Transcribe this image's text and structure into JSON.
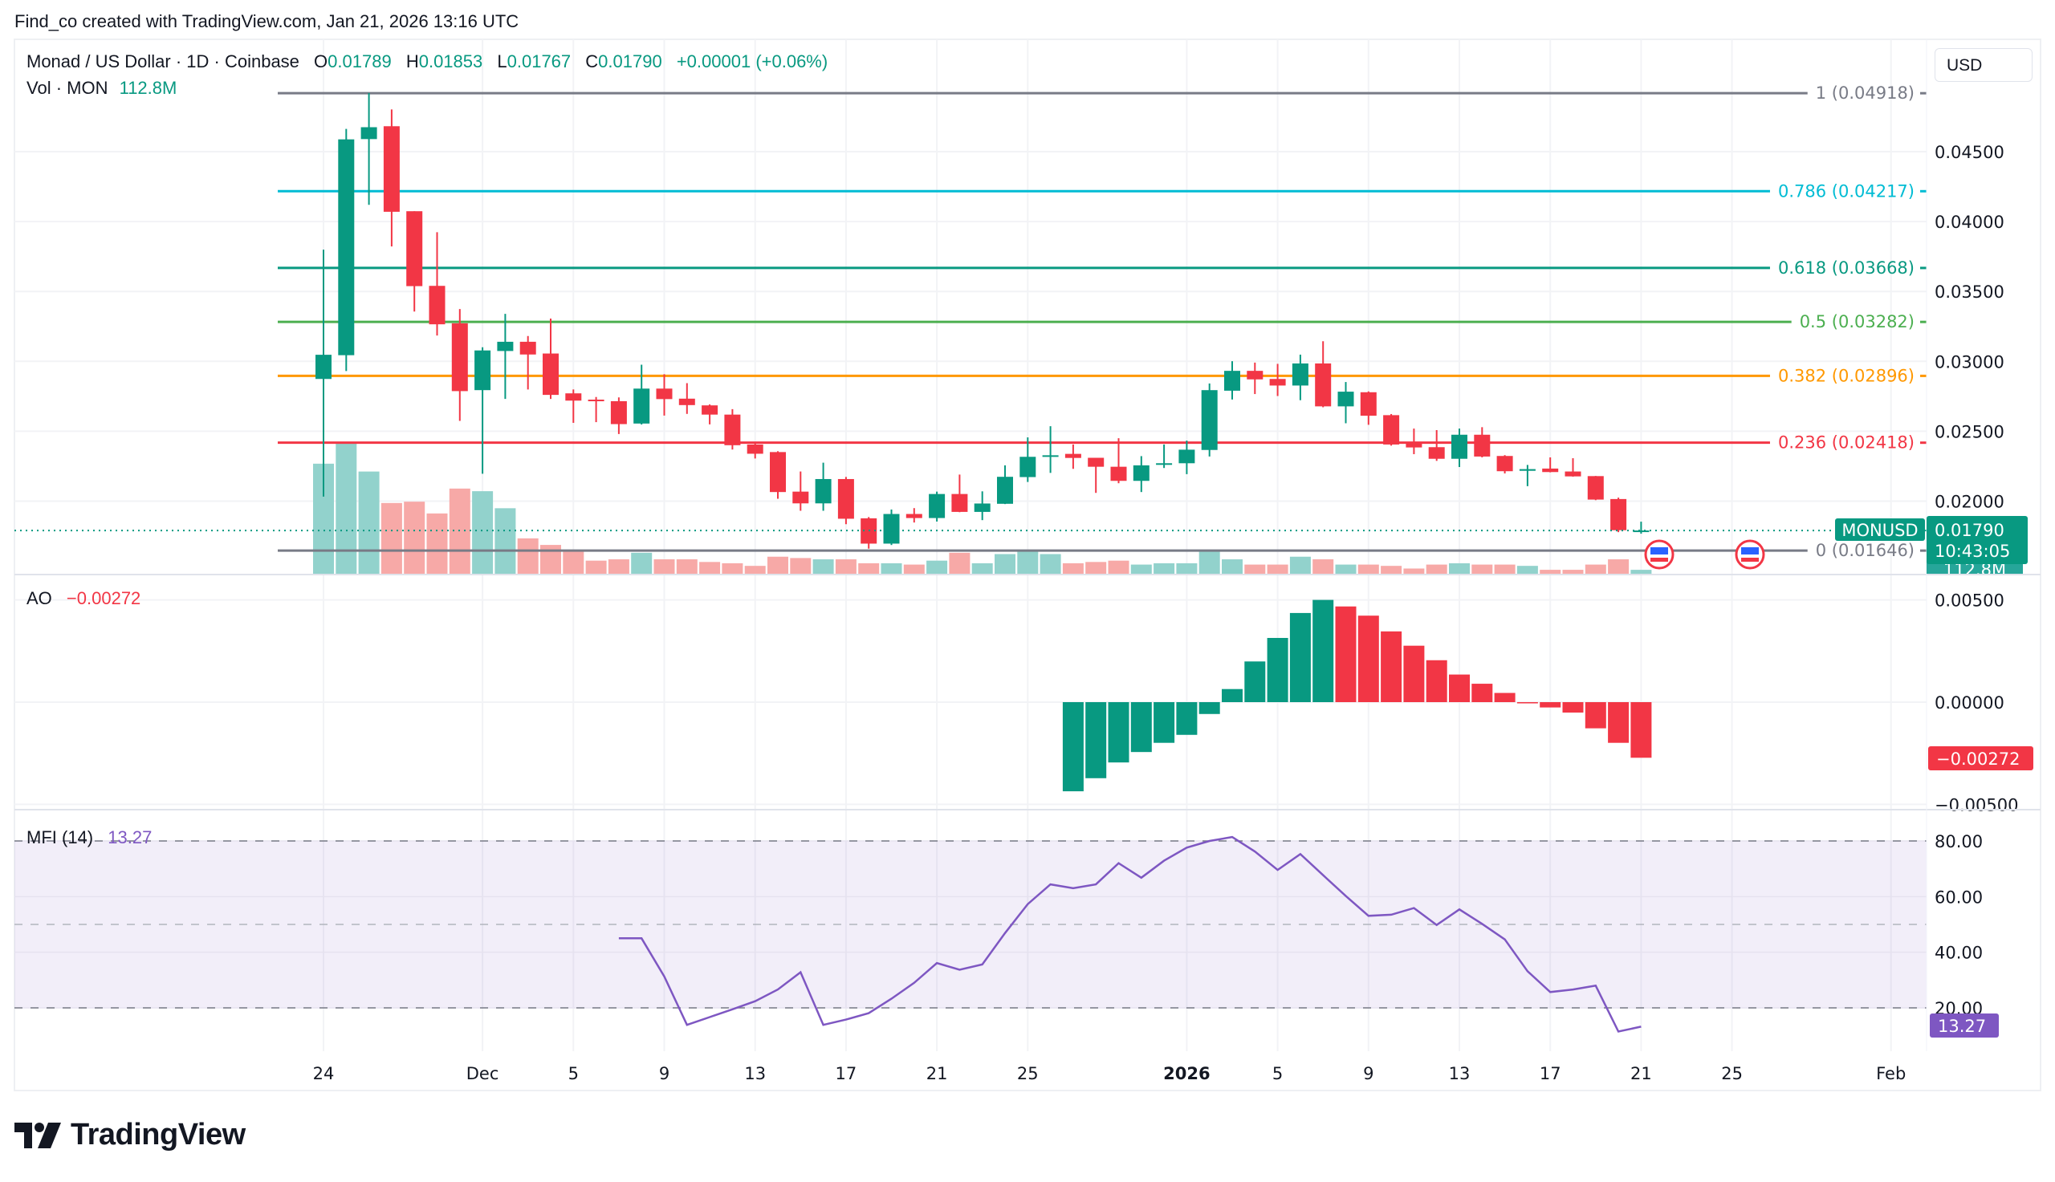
{
  "header": {
    "attribution": "Find_co created with TradingView.com, Jan 21, 2026 13:16 UTC"
  },
  "legend": {
    "symbol": "Monad / US Dollar · 1D · Coinbase",
    "o_label": "O",
    "o": "0.01789",
    "h_label": "H",
    "h": "0.01853",
    "l_label": "L",
    "l": "0.01767",
    "c_label": "C",
    "c": "0.01790",
    "change": "+0.00001 (+0.06%)",
    "vol_label": "Vol · MON",
    "vol": "112.8M"
  },
  "currency_button": "USD",
  "logo": "TradingView",
  "colors": {
    "up": "#089981",
    "down": "#f23645",
    "vol_up": "#92d2cc",
    "vol_down": "#f7a9a7",
    "mfi": "#7e57c2",
    "ao_up": "#089981",
    "ao_down": "#f23645"
  },
  "price_tag": {
    "symbol": "MONUSD",
    "price": "0.01790",
    "countdown": "10:43:05",
    "volume": "112.8M"
  },
  "event_icons": [
    "us-flag-icon",
    "us-flag-icon"
  ],
  "chart_data": [
    {
      "type": "candlestick",
      "title": "Monad / US Dollar · 1D · Coinbase",
      "ylim": [
        0.0155,
        0.0505
      ],
      "yticks": [
        "0.04500",
        "0.04000",
        "0.03500",
        "0.03000",
        "0.02500",
        "0.02000"
      ],
      "xticks": [
        {
          "label": "24",
          "date": "2025-11-24"
        },
        {
          "label": "Dec",
          "date": "2025-12-01"
        },
        {
          "label": "5",
          "date": "2025-12-05"
        },
        {
          "label": "9",
          "date": "2025-12-09"
        },
        {
          "label": "13",
          "date": "2025-12-13"
        },
        {
          "label": "17",
          "date": "2025-12-17"
        },
        {
          "label": "21",
          "date": "2025-12-21"
        },
        {
          "label": "25",
          "date": "2025-12-25"
        },
        {
          "label": "2026",
          "date": "2026-01-01",
          "bold": true
        },
        {
          "label": "5",
          "date": "2026-01-05"
        },
        {
          "label": "9",
          "date": "2026-01-09"
        },
        {
          "label": "13",
          "date": "2026-01-13"
        },
        {
          "label": "17",
          "date": "2026-01-17"
        },
        {
          "label": "21",
          "date": "2026-01-21"
        },
        {
          "label": "25",
          "date": "2026-01-25"
        },
        {
          "label": "Feb",
          "date": "2026-02-01"
        }
      ],
      "columns": [
        "date",
        "open",
        "high",
        "low",
        "close",
        "volume_m"
      ],
      "candles": [
        [
          "2025-11-24",
          0.02874,
          0.03799,
          0.02032,
          0.03047,
          3158
        ],
        [
          "2025-11-25",
          0.03044,
          0.04663,
          0.02931,
          0.04588,
          3760
        ],
        [
          "2025-11-26",
          0.0459,
          0.0492,
          0.0412,
          0.04675,
          2933
        ],
        [
          "2025-11-27",
          0.04682,
          0.04802,
          0.03822,
          0.0407,
          2030
        ],
        [
          "2025-11-28",
          0.04074,
          0.04074,
          0.03356,
          0.03538,
          2068
        ],
        [
          "2025-11-29",
          0.0354,
          0.03924,
          0.03185,
          0.03265,
          1730
        ],
        [
          "2025-11-30",
          0.03272,
          0.03374,
          0.02574,
          0.02787,
          2444
        ],
        [
          "2025-12-01",
          0.02794,
          0.03101,
          0.02196,
          0.03078,
          2369
        ],
        [
          "2025-12-02",
          0.03074,
          0.0334,
          0.02731,
          0.0314,
          1880
        ],
        [
          "2025-12-03",
          0.0314,
          0.03181,
          0.02799,
          0.03049,
          1015
        ],
        [
          "2025-12-04",
          0.03056,
          0.03306,
          0.02731,
          0.0276,
          827
        ],
        [
          "2025-12-05",
          0.02771,
          0.02799,
          0.0256,
          0.02719,
          639
        ],
        [
          "2025-12-06",
          0.02726,
          0.02745,
          0.02565,
          0.02718,
          376
        ],
        [
          "2025-12-07",
          0.02715,
          0.02742,
          0.0248,
          0.02551,
          414
        ],
        [
          "2025-12-08",
          0.02555,
          0.02976,
          0.02548,
          0.02805,
          602
        ],
        [
          "2025-12-09",
          0.02805,
          0.02908,
          0.02612,
          0.0273,
          414
        ],
        [
          "2025-12-10",
          0.02733,
          0.02844,
          0.02624,
          0.02687,
          414
        ],
        [
          "2025-12-11",
          0.02685,
          0.02692,
          0.02549,
          0.02619,
          338
        ],
        [
          "2025-12-12",
          0.02619,
          0.02658,
          0.02369,
          0.024,
          301
        ],
        [
          "2025-12-13",
          0.02405,
          0.02412,
          0.02305,
          0.02339,
          226
        ],
        [
          "2025-12-14",
          0.02351,
          0.02357,
          0.02017,
          0.02065,
          489
        ],
        [
          "2025-12-15",
          0.02068,
          0.02212,
          0.01931,
          0.01984,
          451
        ],
        [
          "2025-12-16",
          0.01984,
          0.02275,
          0.01931,
          0.02158,
          414
        ],
        [
          "2025-12-17",
          0.02158,
          0.02173,
          0.01835,
          0.01874,
          414
        ],
        [
          "2025-12-18",
          0.01877,
          0.01886,
          0.0166,
          0.01696,
          301
        ],
        [
          "2025-12-19",
          0.01696,
          0.0194,
          0.01686,
          0.01908,
          301
        ],
        [
          "2025-12-20",
          0.01908,
          0.0195,
          0.01847,
          0.01879,
          263
        ],
        [
          "2025-12-21",
          0.01879,
          0.02068,
          0.01854,
          0.02051,
          376
        ],
        [
          "2025-12-22",
          0.02051,
          0.0219,
          0.01921,
          0.01923,
          602
        ],
        [
          "2025-12-23",
          0.01923,
          0.0207,
          0.01864,
          0.01983,
          301
        ],
        [
          "2025-12-24",
          0.01981,
          0.02256,
          0.01979,
          0.02174,
          564
        ],
        [
          "2025-12-25",
          0.02172,
          0.02456,
          0.02137,
          0.02317,
          639
        ],
        [
          "2025-12-26",
          0.02317,
          0.02536,
          0.02202,
          0.02328,
          564
        ],
        [
          "2025-12-27",
          0.02338,
          0.02405,
          0.02231,
          0.02309,
          301
        ],
        [
          "2025-12-28",
          0.0231,
          0.0231,
          0.02059,
          0.02246,
          338
        ],
        [
          "2025-12-29",
          0.02246,
          0.0245,
          0.02128,
          0.02145,
          376
        ],
        [
          "2025-12-30",
          0.02145,
          0.02322,
          0.02065,
          0.02256,
          263
        ],
        [
          "2025-12-31",
          0.0226,
          0.02405,
          0.02237,
          0.02271,
          301
        ],
        [
          "2026-01-01",
          0.02271,
          0.02433,
          0.02193,
          0.02368,
          301
        ],
        [
          "2026-01-02",
          0.02366,
          0.02842,
          0.02319,
          0.02794,
          677
        ],
        [
          "2026-01-03",
          0.0279,
          0.03001,
          0.02727,
          0.02932,
          414
        ],
        [
          "2026-01-04",
          0.02932,
          0.02991,
          0.02766,
          0.02871,
          263
        ],
        [
          "2026-01-05",
          0.02874,
          0.02982,
          0.02752,
          0.02827,
          263
        ],
        [
          "2026-01-06",
          0.02827,
          0.03048,
          0.02722,
          0.02985,
          489
        ],
        [
          "2026-01-07",
          0.02985,
          0.03144,
          0.02672,
          0.02678,
          414
        ],
        [
          "2026-01-08",
          0.02678,
          0.02852,
          0.02557,
          0.02783,
          263
        ],
        [
          "2026-01-09",
          0.02779,
          0.02785,
          0.02546,
          0.02611,
          263
        ],
        [
          "2026-01-10",
          0.02615,
          0.02623,
          0.02397,
          0.02405,
          226
        ],
        [
          "2026-01-11",
          0.02424,
          0.02519,
          0.02336,
          0.02384,
          150
        ],
        [
          "2026-01-12",
          0.02386,
          0.02508,
          0.02288,
          0.02303,
          263
        ],
        [
          "2026-01-13",
          0.02303,
          0.02519,
          0.02244,
          0.02475,
          301
        ],
        [
          "2026-01-14",
          0.02475,
          0.02529,
          0.02313,
          0.02319,
          263
        ],
        [
          "2026-01-15",
          0.02323,
          0.02329,
          0.02198,
          0.02214,
          263
        ],
        [
          "2026-01-16",
          0.02217,
          0.02259,
          0.02107,
          0.02229,
          226
        ],
        [
          "2026-01-17",
          0.02233,
          0.02313,
          0.02206,
          0.02208,
          113
        ],
        [
          "2026-01-18",
          0.02212,
          0.02307,
          0.02175,
          0.02177,
          113
        ],
        [
          "2026-01-19",
          0.02179,
          0.0218,
          0.02007,
          0.02011,
          263
        ],
        [
          "2026-01-20",
          0.02015,
          0.02025,
          0.01778,
          0.01792,
          414
        ],
        [
          "2026-01-21",
          0.01789,
          0.01853,
          0.01767,
          0.0179,
          112.8
        ]
      ],
      "fib_levels": [
        {
          "label": "1 (0.04918)",
          "price": 0.04918,
          "color": "#787b86"
        },
        {
          "label": "0.786 (0.04217)",
          "price": 0.04217,
          "color": "#00bcd4"
        },
        {
          "label": "0.618 (0.03668)",
          "price": 0.03668,
          "color": "#089981"
        },
        {
          "label": "0.5 (0.03282)",
          "price": 0.03282,
          "color": "#4caf50"
        },
        {
          "label": "0.382 (0.02896)",
          "price": 0.02896,
          "color": "#ff9800"
        },
        {
          "label": "0.236 (0.02418)",
          "price": 0.02418,
          "color": "#f23645"
        },
        {
          "label": "0 (0.01646)",
          "price": 0.01646,
          "color": "#787b86"
        }
      ]
    },
    {
      "type": "bar",
      "title": "AO",
      "value_label": "−0.00272",
      "ylim": [
        -0.0055,
        0.0055
      ],
      "yticks": [
        "0.00500",
        "0.00000",
        "−0.00500"
      ],
      "dates": [
        "2025-12-27",
        "2025-12-28",
        "2025-12-29",
        "2025-12-30",
        "2025-12-31",
        "2026-01-01",
        "2026-01-02",
        "2026-01-03",
        "2026-01-04",
        "2026-01-05",
        "2026-01-06",
        "2026-01-07",
        "2026-01-08",
        "2026-01-09",
        "2026-01-10",
        "2026-01-11",
        "2026-01-12",
        "2026-01-13",
        "2026-01-14",
        "2026-01-15",
        "2026-01-16",
        "2026-01-17",
        "2026-01-18",
        "2026-01-19",
        "2026-01-20",
        "2026-01-21"
      ],
      "values": [
        -0.00436,
        -0.00372,
        -0.00295,
        -0.00244,
        -0.00199,
        -0.0016,
        -0.00058,
        0.00064,
        0.00199,
        0.00314,
        0.00436,
        0.005,
        0.00468,
        0.00423,
        0.00346,
        0.00276,
        0.00205,
        0.00135,
        0.0009,
        0.00045,
        -6e-05,
        -0.00026,
        -0.00051,
        -0.00128,
        -0.00199,
        -0.00272
      ]
    },
    {
      "type": "line",
      "title": "MFI (14)",
      "value_label": "13.27",
      "ylim": [
        5,
        90
      ],
      "yticks": [
        "80.00",
        "60.00",
        "40.00",
        "20.00"
      ],
      "bands": [
        80,
        50,
        20
      ],
      "start_date": "2025-12-07",
      "values": [
        45.0,
        45.0,
        31.3,
        13.9,
        16.7,
        19.5,
        22.4,
        26.6,
        32.8,
        13.9,
        15.8,
        18.1,
        23.3,
        29.0,
        36.1,
        33.7,
        35.6,
        46.9,
        57.3,
        64.4,
        63.0,
        64.4,
        72.0,
        66.8,
        72.9,
        77.6,
        80.0,
        81.4,
        76.2,
        69.6,
        75.3,
        67.7,
        60.2,
        53.1,
        53.5,
        55.9,
        49.8,
        55.4,
        50.2,
        44.6,
        33.2,
        25.7,
        26.6,
        28.0,
        11.5,
        13.27
      ]
    }
  ]
}
